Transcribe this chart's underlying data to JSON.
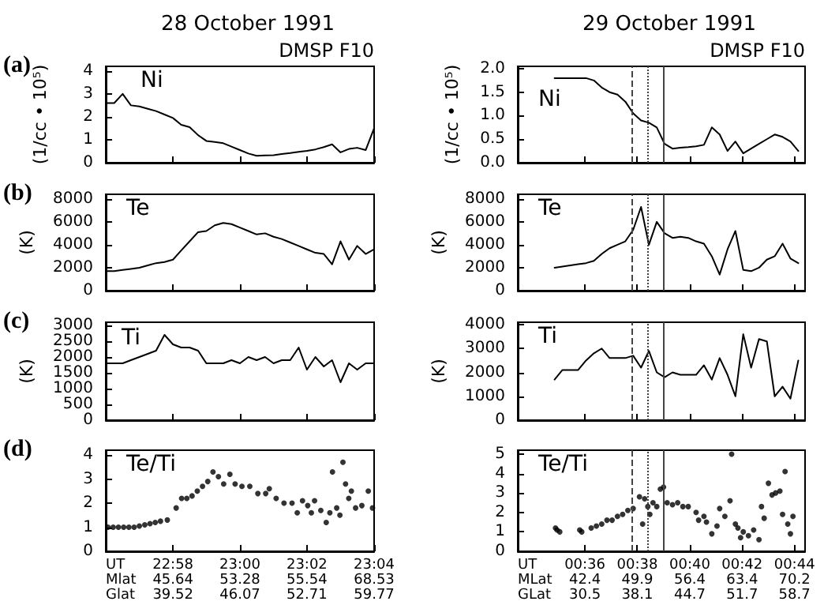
{
  "chart_data": [
    {
      "type": "line",
      "title": "28 October 1991",
      "ylabel": "(1/cc • 10⁵)",
      "annotations": [
        "(a)",
        "DMSP F10"
      ],
      "line_style": "solid",
      "grid": false,
      "tick_labels": "y",
      "x": [
        22.9333,
        22.9375,
        22.9417,
        22.9458,
        22.95,
        22.9542,
        22.9583,
        22.9625,
        22.9667,
        22.9708,
        22.975,
        22.9792,
        22.9833,
        22.9875,
        22.9917,
        22.9958,
        23.0,
        23.0042,
        23.0083,
        23.0125,
        23.0167,
        23.0208,
        23.025,
        23.0292,
        23.0333,
        23.0375,
        23.0417,
        23.0458,
        23.05,
        23.0542,
        23.0583,
        23.0625,
        23.0667
      ],
      "series": [
        {
          "name": "Ni",
          "color": "#000000",
          "values": [
            2.6,
            2.6,
            3.0,
            2.5,
            2.45,
            2.35,
            2.25,
            2.1,
            1.95,
            1.65,
            1.55,
            1.2,
            0.95,
            0.9,
            0.85,
            0.7,
            0.55,
            0.4,
            0.3,
            0.32,
            0.33,
            0.38,
            0.42,
            0.47,
            0.52,
            0.58,
            0.68,
            0.8,
            0.45,
            0.6,
            0.65,
            0.55,
            1.5
          ]
        }
      ],
      "xlim": [
        22.9333,
        23.0667
      ],
      "xticks": [
        {
          "value": 22.9667,
          "label": null
        },
        {
          "value": 23.0,
          "label": null
        },
        {
          "value": 23.0333,
          "label": null
        },
        {
          "value": 23.0667,
          "label": null
        }
      ],
      "ylim": [
        0,
        4.2
      ],
      "yticks": [
        0,
        1,
        2,
        3,
        4
      ]
    },
    {
      "type": "line",
      "title": "29 October 1991",
      "ylabel": "(1/cc • 10⁵)",
      "annotations": [
        "DMSP F10"
      ],
      "line_style": "solid",
      "grid": false,
      "tick_labels": "y",
      "x": [
        0.5807,
        0.5857,
        0.5907,
        0.5957,
        0.6007,
        0.6057,
        0.6107,
        0.6157,
        0.6207,
        0.6257,
        0.6307,
        0.6357,
        0.6407,
        0.6457,
        0.6507,
        0.6557,
        0.6607,
        0.6657,
        0.6707,
        0.6757,
        0.6807,
        0.6857,
        0.6907,
        0.6957,
        0.7007,
        0.7057,
        0.7107,
        0.7157,
        0.7207,
        0.7257,
        0.7307,
        0.7357
      ],
      "series": [
        {
          "name": "Ni",
          "color": "#000000",
          "values": [
            1.8,
            1.8,
            1.8,
            1.8,
            1.8,
            1.75,
            1.6,
            1.5,
            1.45,
            1.3,
            1.05,
            0.9,
            0.85,
            0.75,
            0.4,
            0.3,
            0.32,
            0.33,
            0.35,
            0.38,
            0.75,
            0.6,
            0.25,
            0.45,
            0.2,
            0.3,
            0.4,
            0.5,
            0.6,
            0.55,
            0.45,
            0.25
          ]
        }
      ],
      "xlim": [
        0.5573,
        0.74
      ],
      "xticks": [
        {
          "value": 0.6,
          "label": null
        },
        {
          "value": 0.6333,
          "label": null
        },
        {
          "value": 0.6667,
          "label": null
        },
        {
          "value": 0.7,
          "label": null
        },
        {
          "value": 0.7333,
          "label": null
        }
      ],
      "ylim": [
        0,
        2.05
      ],
      "yticks": [
        {
          "value": 0,
          "label": "0.0"
        },
        {
          "value": 0.5,
          "label": "0.5"
        },
        {
          "value": 1,
          "label": "1.0"
        },
        {
          "value": 1.5,
          "label": "1.5"
        },
        {
          "value": 2,
          "label": "2.0"
        }
      ],
      "ref_lines": [
        {
          "axis": "x",
          "value": 0.63,
          "label": null,
          "line_style": "dashed",
          "color": "#444444"
        },
        {
          "axis": "x",
          "value": 0.64,
          "label": null,
          "line_style": "dotted",
          "color": "#444444"
        },
        {
          "axis": "x",
          "value": 0.65,
          "label": null,
          "line_style": "solid",
          "color": "#444444"
        }
      ]
    },
    {
      "type": "line",
      "ylabel": "(K)",
      "annotations": [
        "(b)"
      ],
      "line_style": "solid",
      "grid": false,
      "tick_labels": "y",
      "x": [
        22.9333,
        22.9375,
        22.9417,
        22.9458,
        22.95,
        22.9542,
        22.9583,
        22.9625,
        22.9667,
        22.9708,
        22.975,
        22.9792,
        22.9833,
        22.9875,
        22.9917,
        22.9958,
        23.0,
        23.0042,
        23.0083,
        23.0125,
        23.0167,
        23.0208,
        23.025,
        23.0292,
        23.0333,
        23.0375,
        23.0417,
        23.0458,
        23.05,
        23.0542,
        23.0583,
        23.0625,
        23.0667
      ],
      "series": [
        {
          "name": "Te",
          "color": "#000000",
          "values": [
            1700,
            1700,
            1800,
            1900,
            2000,
            2200,
            2400,
            2500,
            2700,
            3500,
            4300,
            5100,
            5200,
            5700,
            5900,
            5800,
            5500,
            5200,
            4900,
            5000,
            4700,
            4500,
            4200,
            3900,
            3600,
            3300,
            3200,
            2300,
            4300,
            2700,
            3900,
            3200,
            3600
          ]
        }
      ],
      "xlim": [
        22.9333,
        23.0667
      ],
      "xticks": [
        {
          "value": 22.9667,
          "label": null
        },
        {
          "value": 23.0,
          "label": null
        },
        {
          "value": 23.0333,
          "label": null
        },
        {
          "value": 23.0667,
          "label": null
        }
      ],
      "ylim": [
        0,
        8400
      ],
      "yticks": [
        0,
        2000,
        4000,
        6000,
        8000
      ]
    },
    {
      "type": "line",
      "ylabel": "(K)",
      "line_style": "solid",
      "grid": false,
      "tick_labels": "y",
      "x": [
        0.5807,
        0.5857,
        0.5907,
        0.5957,
        0.6007,
        0.6057,
        0.6107,
        0.6157,
        0.6207,
        0.6257,
        0.6307,
        0.6357,
        0.6407,
        0.6457,
        0.6507,
        0.6557,
        0.6607,
        0.6657,
        0.6707,
        0.6757,
        0.6807,
        0.6857,
        0.6907,
        0.6957,
        0.7007,
        0.7057,
        0.7107,
        0.7157,
        0.7207,
        0.7257,
        0.7307,
        0.7357
      ],
      "series": [
        {
          "name": "Te",
          "color": "#000000",
          "values": [
            2000,
            2100,
            2200,
            2300,
            2400,
            2600,
            3200,
            3700,
            4000,
            4300,
            5300,
            7300,
            4000,
            6000,
            5000,
            4600,
            4700,
            4600,
            4300,
            4100,
            3000,
            1400,
            3600,
            5200,
            1800,
            1700,
            2000,
            2700,
            3000,
            4100,
            2800,
            2400
          ]
        }
      ],
      "xlim": [
        0.5573,
        0.74
      ],
      "xticks": [
        {
          "value": 0.6,
          "label": null
        },
        {
          "value": 0.6333,
          "label": null
        },
        {
          "value": 0.6667,
          "label": null
        },
        {
          "value": 0.7,
          "label": null
        },
        {
          "value": 0.7333,
          "label": null
        }
      ],
      "ylim": [
        0,
        8400
      ],
      "yticks": [
        0,
        2000,
        4000,
        6000,
        8000
      ],
      "ref_lines": [
        {
          "axis": "x",
          "value": 0.63,
          "label": null,
          "line_style": "dashed",
          "color": "#444444"
        },
        {
          "axis": "x",
          "value": 0.64,
          "label": null,
          "line_style": "dotted",
          "color": "#444444"
        },
        {
          "axis": "x",
          "value": 0.65,
          "label": null,
          "line_style": "solid",
          "color": "#444444"
        }
      ]
    },
    {
      "type": "line",
      "ylabel": "(K)",
      "annotations": [
        "(c)"
      ],
      "line_style": "solid",
      "grid": false,
      "tick_labels": "y",
      "x": [
        22.9333,
        22.9375,
        22.9417,
        22.9458,
        22.95,
        22.9542,
        22.9583,
        22.9625,
        22.9667,
        22.9708,
        22.975,
        22.9792,
        22.9833,
        22.9875,
        22.9917,
        22.9958,
        23.0,
        23.0042,
        23.0083,
        23.0125,
        23.0167,
        23.0208,
        23.025,
        23.0292,
        23.0333,
        23.0375,
        23.0417,
        23.0458,
        23.05,
        23.0542,
        23.0583,
        23.0625,
        23.0667
      ],
      "series": [
        {
          "name": "Ti",
          "color": "#000000",
          "values": [
            1800,
            1800,
            1800,
            1900,
            2000,
            2100,
            2200,
            2700,
            2400,
            2300,
            2300,
            2200,
            1800,
            1800,
            1800,
            1900,
            1800,
            2000,
            1900,
            2000,
            1800,
            1900,
            1900,
            2300,
            1600,
            2000,
            1700,
            1900,
            1200,
            1800,
            1600,
            1800,
            1800
          ]
        }
      ],
      "xlim": [
        22.9333,
        23.0667
      ],
      "xticks": [
        {
          "value": 22.9667,
          "label": null
        },
        {
          "value": 23.0,
          "label": null
        },
        {
          "value": 23.0333,
          "label": null
        },
        {
          "value": 23.0667,
          "label": null
        }
      ],
      "ylim": [
        0,
        3100
      ],
      "yticks": [
        0,
        500,
        1000,
        1500,
        2000,
        2500,
        3000
      ]
    },
    {
      "type": "line",
      "ylabel": "(K)",
      "line_style": "solid",
      "grid": false,
      "tick_labels": "y",
      "x": [
        0.5807,
        0.5857,
        0.5907,
        0.5957,
        0.6007,
        0.6057,
        0.6107,
        0.6157,
        0.6207,
        0.6257,
        0.6307,
        0.6357,
        0.6407,
        0.6457,
        0.6507,
        0.6557,
        0.6607,
        0.6657,
        0.6707,
        0.6757,
        0.6807,
        0.6857,
        0.6907,
        0.6957,
        0.7007,
        0.7057,
        0.7107,
        0.7157,
        0.7207,
        0.7257,
        0.7307,
        0.7357
      ],
      "series": [
        {
          "name": "Ti",
          "color": "#000000",
          "values": [
            1700,
            2100,
            2100,
            2100,
            2500,
            2800,
            3000,
            2600,
            2600,
            2600,
            2700,
            2200,
            2900,
            2000,
            1800,
            2000,
            1900,
            1900,
            1900,
            2300,
            1700,
            2600,
            1900,
            1000,
            3600,
            2200,
            3400,
            3300,
            1000,
            1400,
            900,
            2500
          ]
        }
      ],
      "xlim": [
        0.5573,
        0.74
      ],
      "xticks": [
        {
          "value": 0.6,
          "label": null
        },
        {
          "value": 0.6333,
          "label": null
        },
        {
          "value": 0.6667,
          "label": null
        },
        {
          "value": 0.7,
          "label": null
        },
        {
          "value": 0.7333,
          "label": null
        }
      ],
      "ylim": [
        0,
        4100
      ],
      "yticks": [
        0,
        1000,
        2000,
        3000,
        4000
      ],
      "ref_lines": [
        {
          "axis": "x",
          "value": 0.63,
          "label": null,
          "line_style": "dashed",
          "color": "#444444"
        },
        {
          "axis": "x",
          "value": 0.64,
          "label": null,
          "line_style": "dotted",
          "color": "#444444"
        },
        {
          "axis": "x",
          "value": 0.65,
          "label": null,
          "line_style": "solid",
          "color": "#444444"
        }
      ]
    },
    {
      "type": "scatter",
      "marker": "circle",
      "grid": false,
      "annotations": [
        "(d)",
        "UT\nMlat\nGlat",
        "45.64",
        "39.52",
        "53.28",
        "46.07",
        "55.54",
        "52.71",
        "68.53",
        "59.77"
      ],
      "x": [
        22.9344,
        22.937,
        22.9396,
        22.9422,
        22.9448,
        22.9474,
        22.95,
        22.9527,
        22.9553,
        22.9579,
        22.9605,
        22.9639,
        22.9683,
        22.971,
        22.9736,
        22.9762,
        22.9788,
        22.9814,
        22.984,
        22.9866,
        22.9893,
        22.9919,
        22.995,
        22.9976,
        23.001,
        23.0049,
        23.0089,
        23.0128,
        23.0146,
        23.018,
        23.0219,
        23.0259,
        23.0285,
        23.0311,
        23.0337,
        23.0355,
        23.0371,
        23.0402,
        23.0429,
        23.0447,
        23.046,
        23.0481,
        23.0497,
        23.0512,
        23.0525,
        23.0541,
        23.0554,
        23.0575,
        23.0606,
        23.0638,
        23.0659
      ],
      "series": [
        {
          "name": "Te/Ti",
          "color": "#000000",
          "values": [
            1.0,
            1.0,
            1.0,
            1.0,
            1.0,
            1.0,
            1.05,
            1.1,
            1.15,
            1.2,
            1.25,
            1.3,
            1.8,
            2.2,
            2.2,
            2.3,
            2.5,
            2.7,
            2.9,
            3.3,
            3.1,
            2.8,
            3.2,
            2.8,
            2.7,
            2.7,
            2.4,
            2.4,
            2.6,
            2.2,
            2.0,
            2.0,
            1.6,
            2.1,
            1.9,
            1.6,
            2.1,
            1.7,
            1.2,
            1.6,
            3.3,
            1.8,
            1.5,
            3.7,
            2.8,
            2.2,
            2.5,
            1.8,
            1.9,
            2.5,
            1.8
          ]
        }
      ],
      "xlim": [
        22.9333,
        23.0667
      ],
      "xticks": [
        {
          "value": 22.9667,
          "label": "22:58"
        },
        {
          "value": 23.0,
          "label": "23:00"
        },
        {
          "value": 23.0333,
          "label": "23:02"
        },
        {
          "value": 23.0667,
          "label": "23:04"
        }
      ],
      "ylim": [
        0,
        4.2
      ],
      "yticks": [
        0,
        1,
        2,
        3,
        4
      ]
    },
    {
      "type": "scatter",
      "marker": "circle",
      "grid": false,
      "annotations": [
        "UT\nMLat\nGLat",
        "42.4",
        "30.5",
        "49.9",
        "38.1",
        "56.4",
        "44.7",
        "63.4",
        "51.7",
        "70.2",
        "58.7"
      ],
      "x": [
        0.5813,
        0.5823,
        0.584,
        0.5967,
        0.598,
        0.604,
        0.6073,
        0.6107,
        0.614,
        0.6173,
        0.6207,
        0.624,
        0.6273,
        0.6307,
        0.6347,
        0.6367,
        0.638,
        0.64,
        0.6413,
        0.6433,
        0.6457,
        0.648,
        0.65,
        0.6523,
        0.6557,
        0.659,
        0.6623,
        0.6657,
        0.6707,
        0.6723,
        0.6757,
        0.6773,
        0.6807,
        0.684,
        0.6857,
        0.689,
        0.6923,
        0.6933,
        0.6957,
        0.6973,
        0.699,
        0.7007,
        0.704,
        0.7073,
        0.7107,
        0.7123,
        0.714,
        0.7167,
        0.719,
        0.7213,
        0.724,
        0.7257,
        0.7273,
        0.729,
        0.7307,
        0.7323
      ],
      "series": [
        {
          "name": "Te/Ti",
          "color": "#000000",
          "values": [
            1.2,
            1.1,
            1.0,
            1.1,
            1.0,
            1.2,
            1.3,
            1.4,
            1.6,
            1.6,
            1.8,
            1.9,
            2.1,
            2.2,
            2.8,
            1.4,
            2.7,
            2.3,
            1.9,
            2.5,
            2.3,
            3.2,
            3.3,
            2.5,
            2.4,
            2.5,
            2.3,
            2.3,
            2.0,
            1.6,
            1.8,
            1.5,
            0.9,
            1.3,
            2.2,
            1.8,
            2.6,
            5.0,
            1.4,
            1.2,
            0.7,
            1.0,
            0.8,
            1.1,
            0.6,
            2.3,
            1.7,
            3.5,
            2.9,
            3.0,
            3.1,
            1.9,
            4.1,
            1.4,
            0.9,
            1.8
          ]
        }
      ],
      "xlim": [
        0.5573,
        0.74
      ],
      "xticks": [
        {
          "value": 0.6,
          "label": "00:36"
        },
        {
          "value": 0.6333,
          "label": "00:38"
        },
        {
          "value": 0.6667,
          "label": "00:40"
        },
        {
          "value": 0.7,
          "label": "00:42"
        },
        {
          "value": 0.7333,
          "label": "00:44"
        }
      ],
      "ylim": [
        0,
        5.2
      ],
      "yticks": [
        0,
        1,
        2,
        3,
        4,
        5
      ],
      "ref_lines": [
        {
          "axis": "x",
          "value": 0.63,
          "label": null,
          "line_style": "dashed",
          "color": "#444444"
        },
        {
          "axis": "x",
          "value": 0.64,
          "label": null,
          "line_style": "dotted",
          "color": "#444444"
        },
        {
          "axis": "x",
          "value": 0.65,
          "label": null,
          "line_style": "solid",
          "color": "#444444"
        }
      ]
    }
  ]
}
